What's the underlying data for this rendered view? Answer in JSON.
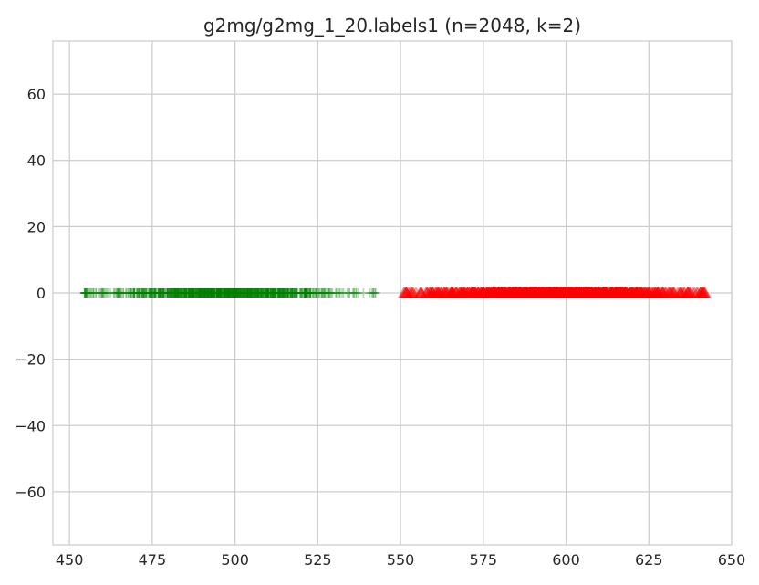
{
  "chart_data": {
    "type": "scatter",
    "title": "g2mg/g2mg_1_20.labels1 (n=2048, k=2)",
    "xlabel": "",
    "ylabel": "",
    "xlim": [
      445,
      650
    ],
    "ylim": [
      -76,
      76
    ],
    "x_ticks": [
      450,
      475,
      500,
      525,
      550,
      575,
      600,
      625,
      650
    ],
    "y_ticks": [
      60,
      40,
      20,
      0,
      -20,
      -40,
      -60
    ],
    "x_tick_labels": [
      "450",
      "475",
      "500",
      "525",
      "550",
      "575",
      "600",
      "625",
      "650"
    ],
    "y_tick_labels": [
      "60",
      "40",
      "20",
      "0",
      "−20",
      "−40",
      "−60"
    ],
    "grid": true,
    "legend": "none",
    "series": [
      {
        "marker": "plus",
        "color": "#008000",
        "x_min": 454.5,
        "x_max": 542.5,
        "dense_range": [
          460,
          532
        ],
        "y": 0
      },
      {
        "marker": "triangle",
        "color": "#ff0000",
        "x_min": 551,
        "x_max": 642,
        "dense_range": [
          556,
          636
        ],
        "y": 0
      }
    ]
  }
}
